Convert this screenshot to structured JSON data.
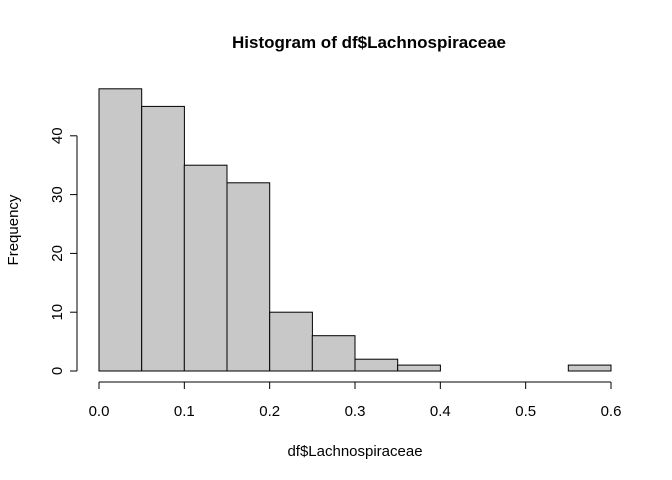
{
  "chart_data": {
    "type": "bar",
    "title": "Histogram of df$Lachnospiraceae",
    "xlabel": "df$Lachnospiraceae",
    "ylabel": "Frequency",
    "bins": [
      {
        "start": 0.0,
        "end": 0.05,
        "count": 48
      },
      {
        "start": 0.05,
        "end": 0.1,
        "count": 45
      },
      {
        "start": 0.1,
        "end": 0.15,
        "count": 35
      },
      {
        "start": 0.15,
        "end": 0.2,
        "count": 32
      },
      {
        "start": 0.2,
        "end": 0.25,
        "count": 10
      },
      {
        "start": 0.25,
        "end": 0.3,
        "count": 6
      },
      {
        "start": 0.3,
        "end": 0.35,
        "count": 2
      },
      {
        "start": 0.35,
        "end": 0.4,
        "count": 1
      },
      {
        "start": 0.4,
        "end": 0.45,
        "count": 0
      },
      {
        "start": 0.45,
        "end": 0.5,
        "count": 0
      },
      {
        "start": 0.5,
        "end": 0.55,
        "count": 0
      },
      {
        "start": 0.55,
        "end": 0.6,
        "count": 1
      }
    ],
    "xlim": [
      0,
      0.6
    ],
    "ylim": [
      0,
      48
    ],
    "x_ticks": [
      0.0,
      0.1,
      0.2,
      0.3,
      0.4,
      0.5,
      0.6
    ],
    "x_tick_labels": [
      "0.0",
      "0.1",
      "0.2",
      "0.3",
      "0.4",
      "0.5",
      "0.6"
    ],
    "y_ticks": [
      0,
      10,
      20,
      30,
      40
    ],
    "y_tick_labels": [
      "0",
      "10",
      "20",
      "30",
      "40"
    ],
    "grid": false,
    "bar_color": "#c8c8c8",
    "edge_color": "#000000"
  }
}
